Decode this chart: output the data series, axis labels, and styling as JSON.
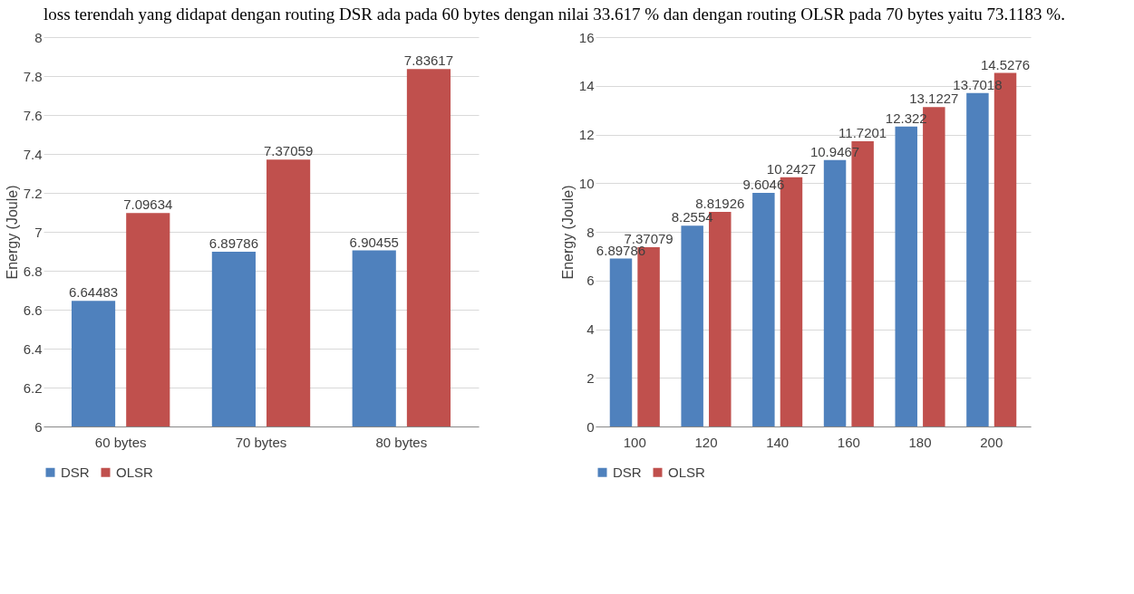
{
  "chart_data": [
    {
      "type": "bar",
      "annotations": [
        "loss terendah yang didapat dengan routing DSR ada pada 60 bytes dengan nilai 33.617 % dan dengan routing OLSR pada 70 bytes yaitu 73.1183 %."
      ],
      "ylabel": "Energy (Joule)",
      "categories": [
        "60 bytes",
        "70 bytes",
        "80 bytes"
      ],
      "series": [
        {
          "name": "DSR",
          "color": "#4f81bd",
          "values": [
            6.64483,
            6.89786,
            6.90455
          ]
        },
        {
          "name": "OLSR",
          "color": "#c0504d",
          "values": [
            7.09634,
            7.37059,
            7.83617
          ]
        }
      ],
      "ylim": [
        6,
        8
      ],
      "yticks": [
        6,
        6.2,
        6.4,
        6.6,
        6.8,
        7,
        7.2,
        7.4,
        7.6,
        7.8,
        8
      ],
      "grid": "y",
      "legend": "bottom",
      "data_labels": true
    },
    {
      "type": "bar",
      "ylabel": "Energy (Joule)",
      "categories": [
        "100",
        "120",
        "140",
        "160",
        "180",
        "200"
      ],
      "series": [
        {
          "name": "DSR",
          "color": "#4f81bd",
          "values": [
            6.89786,
            8.2554,
            9.6046,
            10.9467,
            12.322,
            13.7018
          ]
        },
        {
          "name": "OLSR",
          "color": "#c0504d",
          "values": [
            7.37079,
            8.81926,
            10.2427,
            11.7201,
            13.1227,
            14.5276
          ]
        }
      ],
      "ylim": [
        0,
        16
      ],
      "yticks": [
        0,
        2,
        4,
        6,
        8,
        10,
        12,
        14,
        16
      ],
      "grid": "y",
      "legend": "bottom",
      "data_labels": true
    }
  ]
}
